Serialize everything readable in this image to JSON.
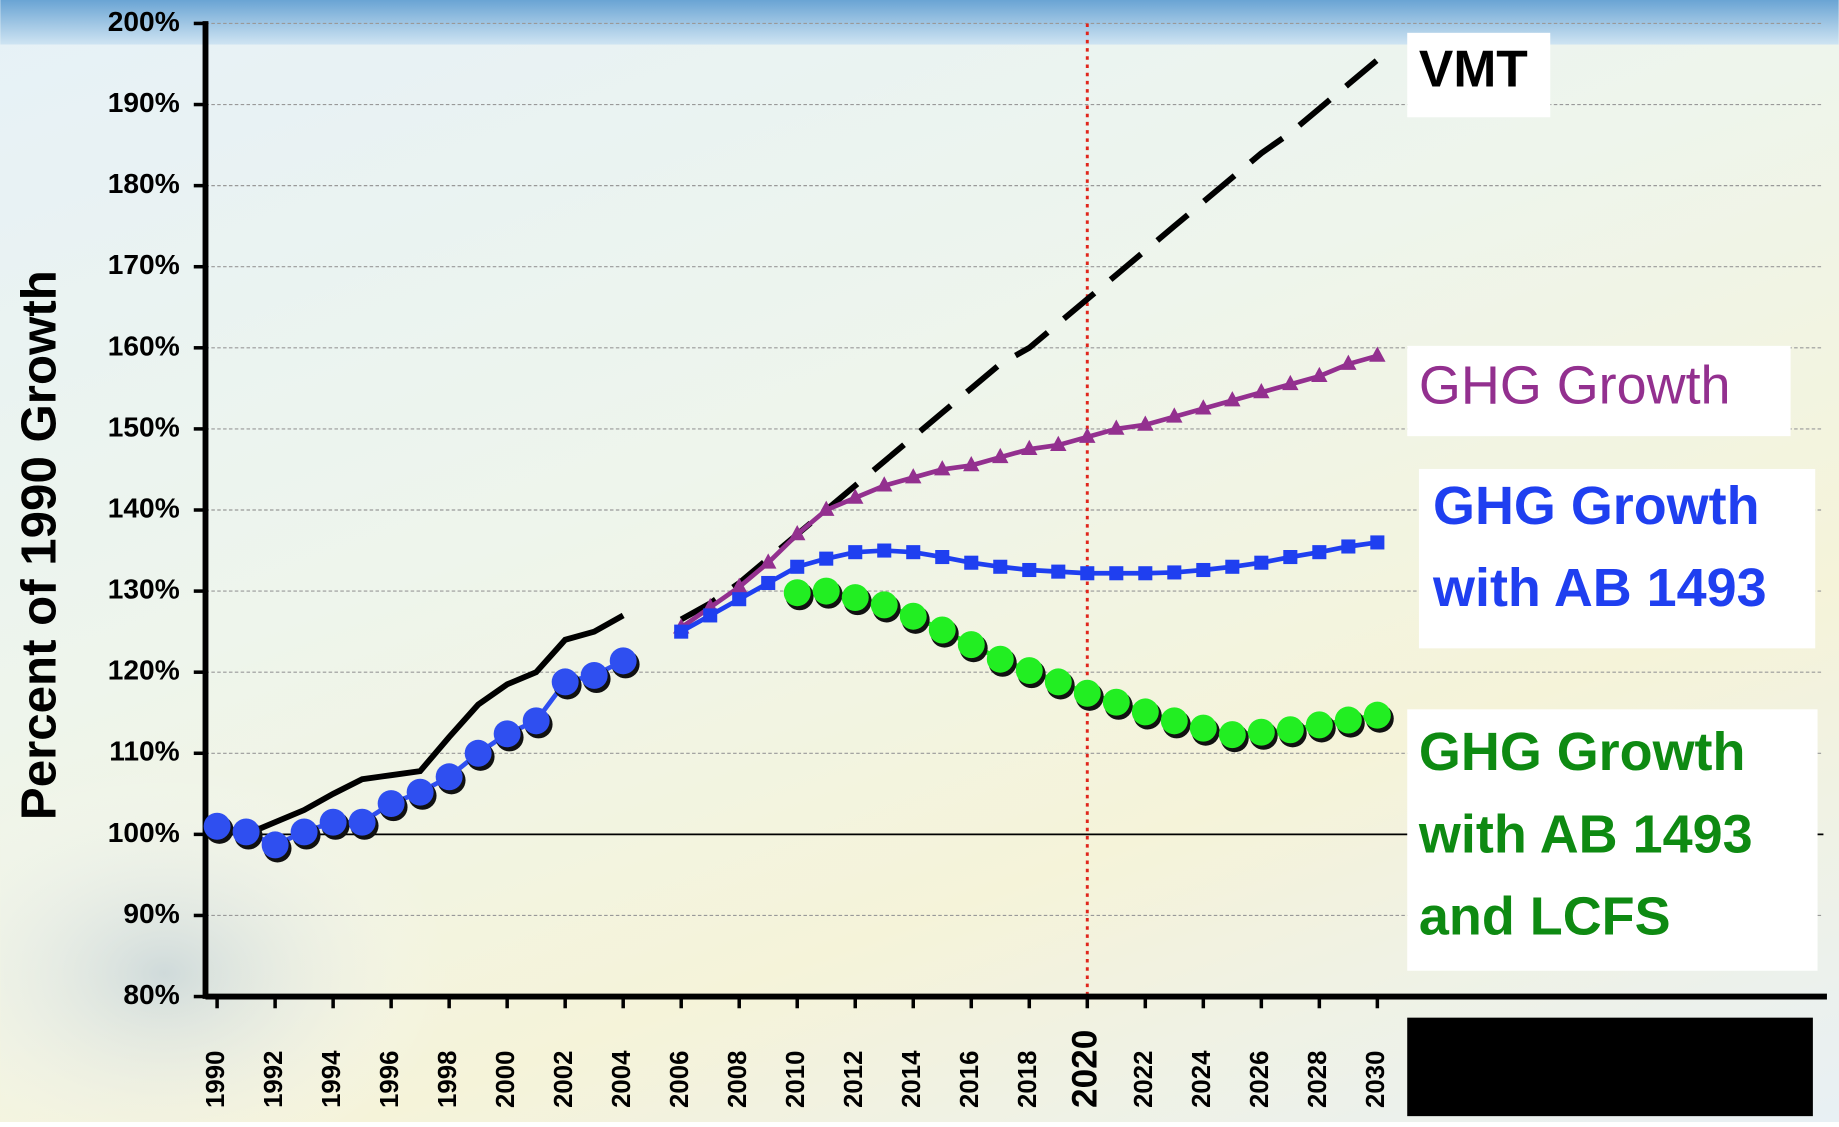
{
  "chart_data": {
    "type": "line",
    "y_axis_label": "Percent of 1990 Growth",
    "x": [
      1990,
      1991,
      1992,
      1993,
      1994,
      1995,
      1996,
      1997,
      1998,
      1999,
      2000,
      2001,
      2002,
      2003,
      2004,
      2005,
      2006,
      2007,
      2008,
      2009,
      2010,
      2011,
      2012,
      2013,
      2014,
      2015,
      2016,
      2017,
      2018,
      2019,
      2020,
      2021,
      2022,
      2023,
      2024,
      2025,
      2026,
      2027,
      2028,
      2029,
      2030
    ],
    "xlim": [
      1989.6,
      2045.5
    ],
    "xticks": [
      1990,
      1992,
      1994,
      1996,
      1998,
      2000,
      2002,
      2004,
      2006,
      2008,
      2010,
      2012,
      2014,
      2016,
      2018,
      2020,
      2022,
      2024,
      2026,
      2028,
      2030
    ],
    "ylim": [
      80,
      200
    ],
    "yticks": [
      {
        "value": 80,
        "label": "80%"
      },
      {
        "value": 90,
        "label": "90%"
      },
      {
        "value": 100,
        "label": "100%"
      },
      {
        "value": 110,
        "label": "110%"
      },
      {
        "value": 120,
        "label": "120%"
      },
      {
        "value": 130,
        "label": "130%"
      },
      {
        "value": 140,
        "label": "140%"
      },
      {
        "value": 150,
        "label": "150%"
      },
      {
        "value": 160,
        "label": "160%"
      },
      {
        "value": 170,
        "label": "170%"
      },
      {
        "value": 180,
        "label": "180%"
      },
      {
        "value": 190,
        "label": "190%"
      },
      {
        "value": 200,
        "label": "200%"
      }
    ],
    "grid": true,
    "highlight_x": 2020,
    "reference_y": 100,
    "series": [
      {
        "name": "VMT",
        "color": "#000000",
        "marker": "none",
        "dashed_from": 2005,
        "values": [
          100.5,
          100,
          101.5,
          103,
          105,
          106.8,
          107.3,
          107.8,
          112,
          116,
          118.5,
          120,
          124,
          125,
          127,
          null,
          126.5,
          128.5,
          131,
          134,
          137,
          140,
          143,
          146,
          149,
          152,
          155,
          158,
          160,
          163,
          166,
          169,
          172,
          175,
          178,
          181,
          184,
          186.5,
          189.5,
          192.5,
          195.5
        ]
      },
      {
        "name": "GHG Growth",
        "color": "#93308f",
        "marker": "triangle",
        "values": [
          null,
          null,
          null,
          null,
          null,
          null,
          null,
          null,
          null,
          null,
          null,
          null,
          null,
          null,
          null,
          null,
          125.5,
          128,
          130.5,
          133.5,
          137,
          140,
          141.5,
          143,
          144,
          145,
          145.5,
          146.5,
          147.5,
          148,
          149,
          150,
          150.5,
          151.5,
          152.5,
          153.5,
          154.5,
          155.5,
          156.5,
          158,
          159
        ]
      },
      {
        "name": "GHG Growth\nwith AB 1493",
        "color": "#1f3ff0",
        "marker": "square",
        "values": [
          null,
          null,
          null,
          null,
          null,
          null,
          null,
          null,
          null,
          null,
          null,
          null,
          null,
          null,
          null,
          null,
          125,
          127,
          129,
          131,
          133,
          134,
          134.8,
          135,
          134.8,
          134.2,
          133.5,
          133,
          132.6,
          132.4,
          132.2,
          132.2,
          132.2,
          132.3,
          132.6,
          133,
          133.5,
          134.2,
          134.8,
          135.5,
          136
        ]
      },
      {
        "color": "#2f4ff0",
        "marker": "circle",
        "values": [
          101,
          100.3,
          98.7,
          100.3,
          101.5,
          101.5,
          103.8,
          105.2,
          107.1,
          110,
          112.4,
          114,
          118.8,
          119.6,
          121.4,
          null,
          null,
          null,
          null,
          null,
          null,
          null,
          null,
          null,
          null,
          null,
          null,
          null,
          null,
          null,
          null,
          null,
          null,
          null,
          null,
          null,
          null,
          null,
          null,
          null,
          null
        ]
      },
      {
        "name": "GHG Growth\nwith AB 1493\nand LCFS",
        "color": "#22ee22",
        "label_color": "#0e8a12",
        "marker": "circle",
        "values": [
          null,
          null,
          null,
          null,
          null,
          null,
          null,
          null,
          null,
          null,
          null,
          null,
          null,
          null,
          null,
          null,
          null,
          null,
          null,
          null,
          129.8,
          130,
          129.2,
          128.3,
          126.9,
          125.2,
          123.4,
          121.6,
          120.2,
          118.8,
          117.4,
          116.3,
          115.1,
          114,
          113.1,
          112.3,
          112.6,
          112.9,
          113.5,
          114.1,
          114.7
        ]
      }
    ]
  }
}
